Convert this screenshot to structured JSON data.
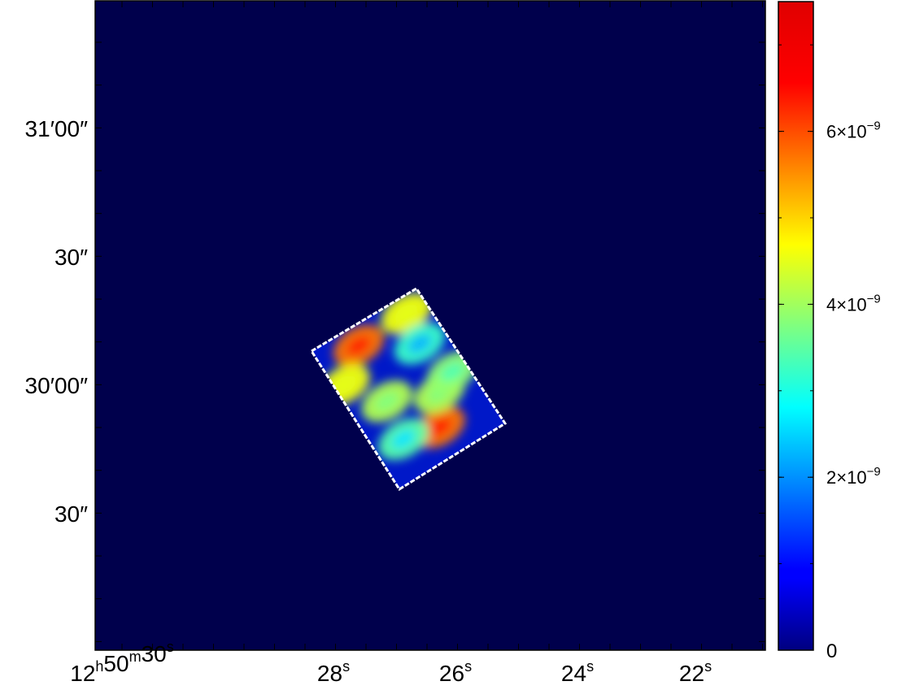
{
  "chart_data": {
    "type": "heatmap",
    "title": "",
    "xlabel": "",
    "ylabel": "",
    "colormap": "jet",
    "background_color": "#00004c",
    "outline_color": "#ffffff",
    "x_ticks": [
      {
        "h": "12",
        "m": "50",
        "s": "30"
      },
      {
        "s": "28"
      },
      {
        "s": "26"
      },
      {
        "s": "24"
      },
      {
        "s": "22"
      }
    ],
    "y_ticks": [
      {
        "deg": "31",
        "min": "′",
        "sec": "00",
        "secmark": "″"
      },
      {
        "deg": "",
        "min": "",
        "sec": "30",
        "secmark": "″"
      },
      {
        "deg": "30",
        "min": "′",
        "sec": "00",
        "secmark": "″"
      },
      {
        "deg": "",
        "min": "",
        "sec": "30",
        "secmark": "″"
      }
    ],
    "colorbar": {
      "range": [
        0,
        7.5e-09
      ],
      "ticks": [
        {
          "value": 0,
          "label": "0"
        },
        {
          "value": 2e-09,
          "mant": "2",
          "exp": "−9"
        },
        {
          "value": 4e-09,
          "mant": "4",
          "exp": "−9"
        },
        {
          "value": 6e-09,
          "mant": "6",
          "exp": "−9"
        }
      ],
      "times_sign": "×10"
    },
    "hotspots_relative_intensity": [
      {
        "u": 0.35,
        "v": 0.12,
        "value": 0.85
      },
      {
        "u": 0.82,
        "v": 0.1,
        "value": 0.6
      },
      {
        "u": 0.08,
        "v": 0.28,
        "value": 0.6
      },
      {
        "u": 0.3,
        "v": 0.5,
        "value": 0.5
      },
      {
        "u": 0.55,
        "v": 0.8,
        "value": 0.85
      },
      {
        "u": 0.7,
        "v": 0.62,
        "value": 0.5
      },
      {
        "u": 0.88,
        "v": 0.55,
        "value": 0.45
      },
      {
        "u": 0.25,
        "v": 0.75,
        "value": 0.35
      },
      {
        "u": 0.78,
        "v": 0.3,
        "value": 0.3
      }
    ]
  }
}
